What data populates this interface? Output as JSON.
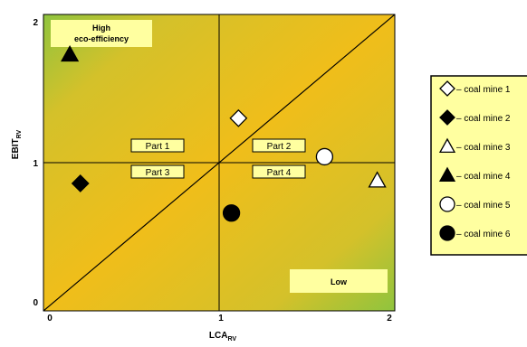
{
  "chart_data": {
    "type": "scatter",
    "title": "",
    "xlabel": "LCA",
    "xlabel_sub": "RV",
    "ylabel": "EBIT",
    "ylabel_sub": "RV",
    "xlim": [
      0,
      2
    ],
    "ylim": [
      0,
      2
    ],
    "x_ticks": [
      "0",
      "1",
      "2"
    ],
    "y_ticks": [
      "0",
      "1",
      "2"
    ],
    "grid": false,
    "reference_lines": {
      "vertical_x": 1,
      "horizontal_y": 1,
      "diagonal": "y = x"
    },
    "corner_labels": {
      "high": [
        "High",
        "eco-efficiency"
      ],
      "low": "Low"
    },
    "quadrant_labels": [
      "Part 1",
      "Part 2",
      "Part 3",
      "Part 4"
    ],
    "series": [
      {
        "name": "– coal mine 1",
        "marker": "diamond",
        "fill": "#ffffff",
        "x": 1.11,
        "y": 1.3
      },
      {
        "name": "– coal mine 2",
        "marker": "diamond",
        "fill": "#000000",
        "x": 0.21,
        "y": 0.86
      },
      {
        "name": "– coal mine 3",
        "marker": "triangle",
        "fill": "#ffffff",
        "x": 1.9,
        "y": 0.88
      },
      {
        "name": "– coal mine 4",
        "marker": "triangle",
        "fill": "#000000",
        "x": 0.15,
        "y": 1.73
      },
      {
        "name": "– coal mine 5",
        "marker": "circle",
        "fill": "#ffffff",
        "x": 1.6,
        "y": 1.04
      },
      {
        "name": "– coal mine 6",
        "marker": "circle",
        "fill": "#000000",
        "x": 1.07,
        "y": 0.66
      }
    ],
    "legend_position": "right",
    "colors": {
      "gradient_center": "#f0be1a",
      "gradient_corner": "#8fc43e",
      "label_box": "#ffffa0"
    }
  }
}
